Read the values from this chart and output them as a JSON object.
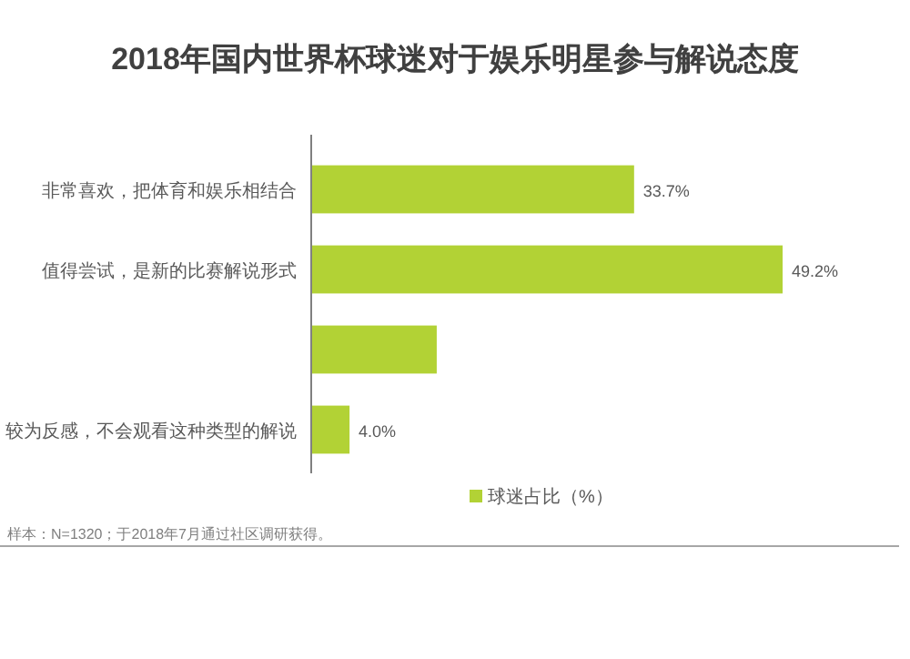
{
  "chart_data": {
    "type": "bar",
    "orientation": "horizontal",
    "title": "2018年国内世界杯球迷对于娱乐明星参与解说态度",
    "categories": [
      "非常喜欢，把体育和娱乐相结合",
      "值得尝试，是新的比赛解说形式",
      null,
      "较为反感，不会观看这种类型的解说"
    ],
    "series": [
      {
        "name": "球迷占比（%）",
        "color": "#b2d235",
        "values": [
          33.7,
          49.2,
          13.1,
          4.0
        ],
        "value_labels": [
          "33.7%",
          "49.2%",
          null,
          "4.0%"
        ]
      }
    ],
    "legend": "bottom",
    "annotations": [
      "样本：N=1320；于2018年7月通过社区调研获得。"
    ]
  }
}
